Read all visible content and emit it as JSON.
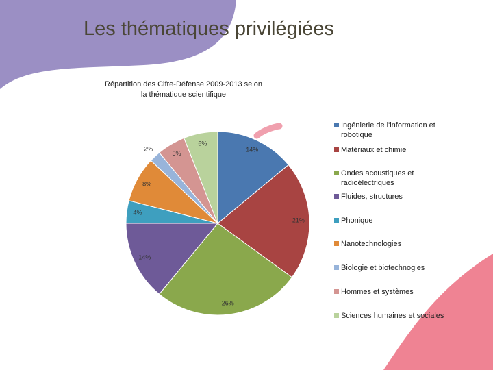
{
  "slide_title": "Les thématiques privilégiées",
  "chart_data": {
    "type": "pie",
    "title": "Répartition des Cifre-Défense 2009-2013 selon la thématique scientifique",
    "categories": [
      "Ingénierie de l'information et robotique",
      "Matériaux et chimie",
      "Ondes acoustiques et radioélectriques",
      "Fluides, structures",
      "Phonique",
      "Nanotechnologies",
      "Biologie et biotechnogies",
      "Hommes et systèmes",
      "Sciences humaines et sociales"
    ],
    "values": [
      14,
      21,
      26,
      14,
      4,
      8,
      2,
      5,
      6
    ],
    "value_labels": [
      "14%",
      "21%",
      "26%",
      "14%",
      "4%",
      "8%",
      "2%",
      "5%",
      "6%"
    ],
    "colors": [
      "#4a78b0",
      "#a84442",
      "#8aa84c",
      "#6e5a98",
      "#3e9fbf",
      "#e08a38",
      "#98b4da",
      "#d49592",
      "#b9d29c"
    ],
    "legend": "right"
  }
}
